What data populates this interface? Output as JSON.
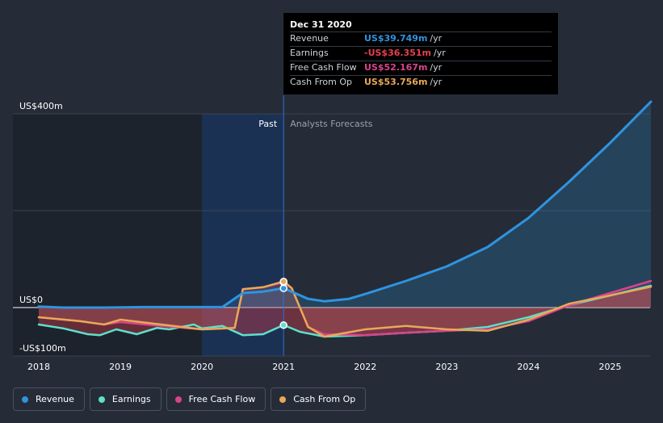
{
  "tooltip": {
    "title": "Dec 31 2020",
    "rows": [
      {
        "label": "Revenue",
        "value": "US$39.749m",
        "unit": "/yr",
        "color": "#2f94e0"
      },
      {
        "label": "Earnings",
        "value": "-US$36.351m",
        "unit": "/yr",
        "color": "#e8404d"
      },
      {
        "label": "Free Cash Flow",
        "value": "US$52.167m",
        "unit": "/yr",
        "color": "#d9448a"
      },
      {
        "label": "Cash From Op",
        "value": "US$53.756m",
        "unit": "/yr",
        "color": "#e8a957"
      }
    ]
  },
  "regions": {
    "past": "Past",
    "forecast": "Analysts Forecasts"
  },
  "legend": [
    {
      "label": "Revenue",
      "color": "#2f94e0"
    },
    {
      "label": "Earnings",
      "color": "#5ee0cc"
    },
    {
      "label": "Free Cash Flow",
      "color": "#d9448a"
    },
    {
      "label": "Cash From Op",
      "color": "#e8a957"
    }
  ],
  "chart_data": {
    "type": "line",
    "y_unit": "US$ m",
    "ylim": [
      -100,
      400
    ],
    "ytick_labels": [
      {
        "value": 400,
        "label": "US$400m"
      },
      {
        "value": 0,
        "label": "US$0"
      },
      {
        "value": -100,
        "label": "-US$100m"
      }
    ],
    "xlim": [
      2018,
      2025.5
    ],
    "xticks": [
      2018,
      2019,
      2020,
      2021,
      2022,
      2023,
      2024,
      2025
    ],
    "divider_x": 2021,
    "highlight_range": [
      2020,
      2021
    ],
    "series": [
      {
        "name": "Revenue",
        "color": "#2f94e0",
        "points": [
          [
            2018,
            2
          ],
          [
            2018.3,
            0
          ],
          [
            2018.8,
            0
          ],
          [
            2019.3,
            1
          ],
          [
            2019.8,
            1
          ],
          [
            2020.25,
            1
          ],
          [
            2020.5,
            30
          ],
          [
            2020.75,
            33
          ],
          [
            2021,
            40
          ],
          [
            2021.3,
            18
          ],
          [
            2021.5,
            13
          ],
          [
            2021.8,
            18
          ],
          [
            2022,
            28
          ],
          [
            2022.5,
            55
          ],
          [
            2023,
            85
          ],
          [
            2023.5,
            125
          ],
          [
            2024,
            185
          ],
          [
            2024.5,
            260
          ],
          [
            2025,
            340
          ],
          [
            2025.5,
            425
          ]
        ]
      },
      {
        "name": "Earnings",
        "color": "#5ee0cc",
        "points": [
          [
            2018,
            -35
          ],
          [
            2018.3,
            -43
          ],
          [
            2018.6,
            -55
          ],
          [
            2018.75,
            -57
          ],
          [
            2018.95,
            -45
          ],
          [
            2019.2,
            -55
          ],
          [
            2019.45,
            -42
          ],
          [
            2019.6,
            -45
          ],
          [
            2019.9,
            -35
          ],
          [
            2020,
            -43
          ],
          [
            2020.25,
            -38
          ],
          [
            2020.5,
            -57
          ],
          [
            2020.75,
            -55
          ],
          [
            2021,
            -36
          ],
          [
            2021.2,
            -50
          ],
          [
            2021.5,
            -60
          ],
          [
            2022,
            -57
          ],
          [
            2022.5,
            -52
          ],
          [
            2023,
            -48
          ],
          [
            2023.5,
            -40
          ],
          [
            2024,
            -20
          ],
          [
            2024.5,
            5
          ],
          [
            2025,
            25
          ],
          [
            2025.5,
            45
          ]
        ]
      },
      {
        "name": "Free Cash Flow",
        "color": "#d9448a",
        "points": [
          [
            2018,
            -20
          ],
          [
            2018.5,
            -28
          ],
          [
            2018.8,
            -35
          ],
          [
            2019,
            -30
          ],
          [
            2019.5,
            -38
          ],
          [
            2020,
            -45
          ],
          [
            2020.4,
            -42
          ],
          [
            2020.5,
            38
          ],
          [
            2020.75,
            42
          ],
          [
            2021,
            52
          ],
          [
            2021.1,
            40
          ],
          [
            2021.3,
            -40
          ],
          [
            2021.5,
            -55
          ],
          [
            2022,
            -57
          ],
          [
            2022.5,
            -52
          ],
          [
            2023,
            -48
          ],
          [
            2023.5,
            -45
          ],
          [
            2024,
            -28
          ],
          [
            2024.5,
            5
          ],
          [
            2025,
            30
          ],
          [
            2025.5,
            55
          ]
        ]
      },
      {
        "name": "Cash From Op",
        "color": "#e8a957",
        "points": [
          [
            2018,
            -20
          ],
          [
            2018.5,
            -28
          ],
          [
            2018.8,
            -35
          ],
          [
            2019,
            -25
          ],
          [
            2019.5,
            -35
          ],
          [
            2020,
            -45
          ],
          [
            2020.4,
            -42
          ],
          [
            2020.5,
            38
          ],
          [
            2020.75,
            42
          ],
          [
            2021,
            54
          ],
          [
            2021.1,
            40
          ],
          [
            2021.3,
            -40
          ],
          [
            2021.5,
            -60
          ],
          [
            2022,
            -45
          ],
          [
            2022.5,
            -38
          ],
          [
            2023,
            -45
          ],
          [
            2023.5,
            -48
          ],
          [
            2024,
            -25
          ],
          [
            2024.5,
            8
          ],
          [
            2025,
            25
          ],
          [
            2025.5,
            43
          ]
        ]
      }
    ],
    "highlight_points": [
      {
        "series": "Revenue",
        "x": 2021,
        "y": 39.749
      },
      {
        "series": "Earnings",
        "x": 2021,
        "y": -36.351
      },
      {
        "series": "Free Cash Flow",
        "x": 2021,
        "y": 52.167
      },
      {
        "series": "Cash From Op",
        "x": 2021,
        "y": 53.756
      }
    ]
  }
}
